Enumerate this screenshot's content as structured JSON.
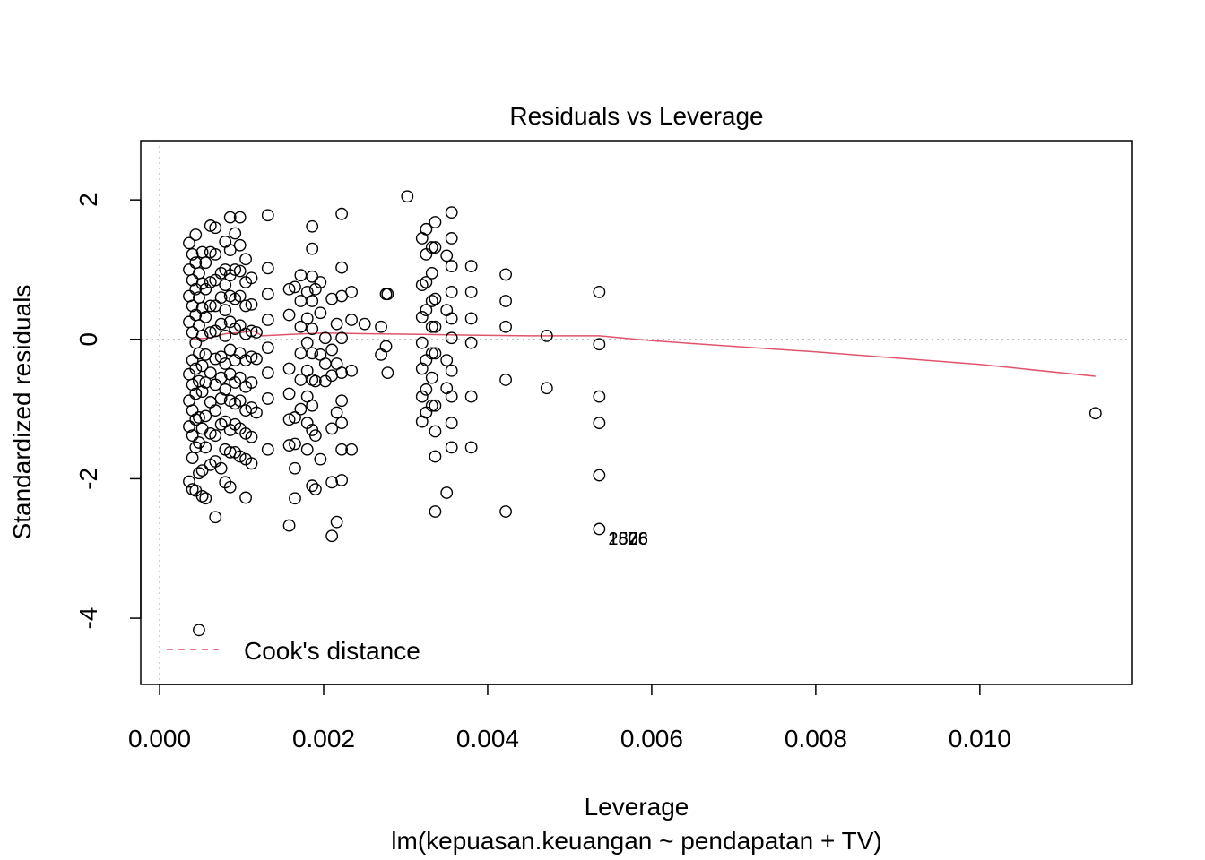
{
  "chart_data": {
    "type": "scatter",
    "title": "Residuals vs Leverage",
    "xlabel": "Leverage",
    "subtitle": "lm(kepuasan.keuangan ~ pendapatan + TV)",
    "ylabel": "Standardized residuals",
    "xlim": [
      -0.00023,
      0.01186
    ],
    "ylim": [
      -4.95,
      2.85
    ],
    "xticks": [
      0.0,
      0.002,
      0.004,
      0.006,
      0.008,
      0.01
    ],
    "xtick_labels": [
      "0.000",
      "0.002",
      "0.004",
      "0.006",
      "0.008",
      "0.010"
    ],
    "yticks": [
      -4,
      -2,
      0,
      2
    ],
    "ytick_labels": [
      "-4",
      "-2",
      "0",
      "2"
    ],
    "reference_lines": {
      "x": 0,
      "y": 0,
      "style": "dotted",
      "color": "#bebebe"
    },
    "point_style": "open-circle",
    "points": [
      [
        0.00036,
        -2.04
      ],
      [
        0.00036,
        -1.25
      ],
      [
        0.00036,
        -0.88
      ],
      [
        0.00036,
        -0.5
      ],
      [
        0.00036,
        0.25
      ],
      [
        0.00036,
        0.62
      ],
      [
        0.00036,
        1.0
      ],
      [
        0.00036,
        1.38
      ],
      [
        0.0004,
        -2.15
      ],
      [
        0.0004,
        -1.7
      ],
      [
        0.0004,
        -1.38
      ],
      [
        0.0004,
        -1.02
      ],
      [
        0.0004,
        -0.65
      ],
      [
        0.0004,
        -0.3
      ],
      [
        0.0004,
        0.1
      ],
      [
        0.0004,
        0.48
      ],
      [
        0.0004,
        0.85
      ],
      [
        0.0004,
        1.22
      ],
      [
        0.00044,
        -2.17
      ],
      [
        0.00044,
        -1.55
      ],
      [
        0.00044,
        -1.15
      ],
      [
        0.00044,
        -0.78
      ],
      [
        0.00044,
        -0.42
      ],
      [
        0.00044,
        -0.05
      ],
      [
        0.00044,
        0.35
      ],
      [
        0.00044,
        0.72
      ],
      [
        0.00044,
        1.1
      ],
      [
        0.00044,
        1.5
      ],
      [
        0.00048,
        -4.17
      ],
      [
        0.00048,
        -1.92
      ],
      [
        0.00048,
        -1.48
      ],
      [
        0.00048,
        -1.12
      ],
      [
        0.00048,
        -0.6
      ],
      [
        0.00048,
        -0.2
      ],
      [
        0.00048,
        0.2
      ],
      [
        0.00048,
        0.6
      ],
      [
        0.00048,
        0.95
      ],
      [
        0.00052,
        -2.25
      ],
      [
        0.00052,
        -1.88
      ],
      [
        0.00052,
        -1.28
      ],
      [
        0.00052,
        -0.75
      ],
      [
        0.00052,
        -0.38
      ],
      [
        0.00052,
        0.05
      ],
      [
        0.00052,
        0.45
      ],
      [
        0.00052,
        0.8
      ],
      [
        0.00052,
        1.25
      ],
      [
        0.00056,
        -2.28
      ],
      [
        0.00056,
        -1.55
      ],
      [
        0.00056,
        -1.1
      ],
      [
        0.00056,
        -0.62
      ],
      [
        0.00056,
        -0.22
      ],
      [
        0.00056,
        0.32
      ],
      [
        0.00056,
        0.72
      ],
      [
        0.00056,
        1.1
      ],
      [
        0.00062,
        -1.8
      ],
      [
        0.00062,
        -1.35
      ],
      [
        0.00062,
        -0.9
      ],
      [
        0.00062,
        -0.48
      ],
      [
        0.00062,
        0.1
      ],
      [
        0.00062,
        0.48
      ],
      [
        0.00062,
        0.82
      ],
      [
        0.00062,
        1.25
      ],
      [
        0.00062,
        1.63
      ],
      [
        0.00068,
        -2.55
      ],
      [
        0.00068,
        -1.75
      ],
      [
        0.00068,
        -1.38
      ],
      [
        0.00068,
        -1.02
      ],
      [
        0.00068,
        -0.65
      ],
      [
        0.00068,
        -0.28
      ],
      [
        0.00068,
        0.12
      ],
      [
        0.00068,
        0.48
      ],
      [
        0.00068,
        0.85
      ],
      [
        0.00068,
        1.22
      ],
      [
        0.00068,
        1.6
      ],
      [
        0.00075,
        -1.85
      ],
      [
        0.00075,
        -1.22
      ],
      [
        0.00075,
        -0.85
      ],
      [
        0.00075,
        -0.55
      ],
      [
        0.00075,
        -0.25
      ],
      [
        0.00075,
        0.22
      ],
      [
        0.00075,
        0.6
      ],
      [
        0.00075,
        0.95
      ],
      [
        0.0008,
        -2.05
      ],
      [
        0.0008,
        -1.58
      ],
      [
        0.0008,
        -1.18
      ],
      [
        0.0008,
        -0.72
      ],
      [
        0.0008,
        -0.35
      ],
      [
        0.0008,
        0.05
      ],
      [
        0.0008,
        0.42
      ],
      [
        0.0008,
        0.78
      ],
      [
        0.0008,
        1.0
      ],
      [
        0.0008,
        1.4
      ],
      [
        0.00086,
        -2.12
      ],
      [
        0.00086,
        -1.62
      ],
      [
        0.00086,
        -1.3
      ],
      [
        0.00086,
        -0.88
      ],
      [
        0.00086,
        -0.5
      ],
      [
        0.00086,
        -0.15
      ],
      [
        0.00086,
        0.25
      ],
      [
        0.00086,
        0.62
      ],
      [
        0.00086,
        0.92
      ],
      [
        0.00086,
        1.28
      ],
      [
        0.00086,
        1.75
      ],
      [
        0.00092,
        -1.62
      ],
      [
        0.00092,
        -1.22
      ],
      [
        0.00092,
        -0.92
      ],
      [
        0.00092,
        -0.62
      ],
      [
        0.00092,
        -0.3
      ],
      [
        0.00092,
        0.15
      ],
      [
        0.00092,
        0.58
      ],
      [
        0.00092,
        1.0
      ],
      [
        0.00092,
        1.52
      ],
      [
        0.00098,
        -1.68
      ],
      [
        0.00098,
        -1.28
      ],
      [
        0.00098,
        -0.88
      ],
      [
        0.00098,
        -0.55
      ],
      [
        0.00098,
        -0.2
      ],
      [
        0.00098,
        0.2
      ],
      [
        0.00098,
        0.62
      ],
      [
        0.00098,
        0.98
      ],
      [
        0.00098,
        1.35
      ],
      [
        0.00098,
        1.75
      ],
      [
        0.00105,
        -2.27
      ],
      [
        0.00105,
        -1.72
      ],
      [
        0.00105,
        -1.35
      ],
      [
        0.00105,
        -1.02
      ],
      [
        0.00105,
        -0.68
      ],
      [
        0.00105,
        -0.3
      ],
      [
        0.00105,
        0.08
      ],
      [
        0.00105,
        0.48
      ],
      [
        0.00105,
        0.82
      ],
      [
        0.00105,
        1.15
      ],
      [
        0.00112,
        -1.78
      ],
      [
        0.00112,
        -1.4
      ],
      [
        0.00112,
        -0.98
      ],
      [
        0.00112,
        -0.62
      ],
      [
        0.00112,
        -0.25
      ],
      [
        0.00112,
        0.12
      ],
      [
        0.00112,
        0.5
      ],
      [
        0.00112,
        0.88
      ],
      [
        0.00118,
        -1.05
      ],
      [
        0.00118,
        -0.28
      ],
      [
        0.00118,
        0.1
      ],
      [
        0.00132,
        -1.58
      ],
      [
        0.00132,
        -0.85
      ],
      [
        0.00132,
        -0.48
      ],
      [
        0.00132,
        -0.12
      ],
      [
        0.00132,
        0.28
      ],
      [
        0.00132,
        0.65
      ],
      [
        0.00132,
        1.02
      ],
      [
        0.00132,
        1.78
      ],
      [
        0.00158,
        -2.67
      ],
      [
        0.00158,
        -1.52
      ],
      [
        0.00158,
        -1.15
      ],
      [
        0.00158,
        -0.78
      ],
      [
        0.00158,
        -0.42
      ],
      [
        0.00158,
        0.35
      ],
      [
        0.00158,
        0.72
      ],
      [
        0.00165,
        -2.28
      ],
      [
        0.00165,
        -1.85
      ],
      [
        0.00165,
        -1.5
      ],
      [
        0.00165,
        -1.12
      ],
      [
        0.00165,
        0.75
      ],
      [
        0.00172,
        -1.0
      ],
      [
        0.00172,
        -0.58
      ],
      [
        0.00172,
        -0.2
      ],
      [
        0.00172,
        0.18
      ],
      [
        0.00172,
        0.55
      ],
      [
        0.00172,
        0.92
      ],
      [
        0.0018,
        -1.58
      ],
      [
        0.0018,
        -1.2
      ],
      [
        0.0018,
        -0.82
      ],
      [
        0.0018,
        -0.45
      ],
      [
        0.0018,
        -0.05
      ],
      [
        0.0018,
        0.3
      ],
      [
        0.0018,
        0.68
      ],
      [
        0.00186,
        -2.1
      ],
      [
        0.00186,
        -1.3
      ],
      [
        0.00186,
        -0.95
      ],
      [
        0.00186,
        -0.58
      ],
      [
        0.00186,
        -0.2
      ],
      [
        0.00186,
        0.15
      ],
      [
        0.00186,
        0.55
      ],
      [
        0.00186,
        0.9
      ],
      [
        0.00186,
        1.3
      ],
      [
        0.00186,
        1.62
      ],
      [
        0.0019,
        -2.15
      ],
      [
        0.0019,
        -1.38
      ],
      [
        0.0019,
        -0.6
      ],
      [
        0.0019,
        0.72
      ],
      [
        0.00196,
        -1.72
      ],
      [
        0.00196,
        -0.22
      ],
      [
        0.00196,
        0.38
      ],
      [
        0.00196,
        0.82
      ],
      [
        0.00202,
        -0.6
      ],
      [
        0.00202,
        -0.35
      ],
      [
        0.00202,
        0.02
      ],
      [
        0.0021,
        -2.82
      ],
      [
        0.0021,
        -2.05
      ],
      [
        0.0021,
        -1.28
      ],
      [
        0.0021,
        -0.52
      ],
      [
        0.0021,
        -0.15
      ],
      [
        0.0021,
        0.58
      ],
      [
        0.00216,
        -2.62
      ],
      [
        0.00216,
        -1.05
      ],
      [
        0.00216,
        -0.35
      ],
      [
        0.00216,
        0.22
      ],
      [
        0.00222,
        -2.02
      ],
      [
        0.00222,
        -1.58
      ],
      [
        0.00222,
        -1.2
      ],
      [
        0.00222,
        -0.88
      ],
      [
        0.00222,
        -0.48
      ],
      [
        0.00222,
        0.02
      ],
      [
        0.00222,
        0.62
      ],
      [
        0.00222,
        1.03
      ],
      [
        0.00222,
        1.8
      ],
      [
        0.00234,
        -1.58
      ],
      [
        0.00234,
        -0.45
      ],
      [
        0.00234,
        0.28
      ],
      [
        0.00234,
        0.68
      ],
      [
        0.0025,
        0.22
      ],
      [
        0.0027,
        -0.22
      ],
      [
        0.0027,
        0.18
      ],
      [
        0.00276,
        -0.1
      ],
      [
        0.00276,
        0.65
      ],
      [
        0.00278,
        -0.48
      ],
      [
        0.00278,
        0.65
      ],
      [
        0.00302,
        2.05
      ],
      [
        0.0032,
        -1.18
      ],
      [
        0.0032,
        -0.82
      ],
      [
        0.0032,
        -0.42
      ],
      [
        0.0032,
        -0.05
      ],
      [
        0.0032,
        0.32
      ],
      [
        0.0032,
        0.78
      ],
      [
        0.0032,
        1.45
      ],
      [
        0.00325,
        -1.05
      ],
      [
        0.00325,
        -0.72
      ],
      [
        0.00325,
        -0.3
      ],
      [
        0.00325,
        0.42
      ],
      [
        0.00325,
        0.82
      ],
      [
        0.00325,
        1.22
      ],
      [
        0.00325,
        1.58
      ],
      [
        0.00332,
        -0.95
      ],
      [
        0.00332,
        -0.55
      ],
      [
        0.00332,
        -0.2
      ],
      [
        0.00332,
        0.18
      ],
      [
        0.00332,
        0.55
      ],
      [
        0.00332,
        0.95
      ],
      [
        0.00332,
        1.32
      ],
      [
        0.00336,
        -2.47
      ],
      [
        0.00336,
        -1.68
      ],
      [
        0.00336,
        -1.32
      ],
      [
        0.00336,
        -0.95
      ],
      [
        0.00336,
        -0.2
      ],
      [
        0.00336,
        0.18
      ],
      [
        0.00336,
        0.58
      ],
      [
        0.00336,
        1.32
      ],
      [
        0.00336,
        1.68
      ],
      [
        0.0035,
        -2.2
      ],
      [
        0.0035,
        -0.7
      ],
      [
        0.0035,
        -0.3
      ],
      [
        0.0035,
        0.42
      ],
      [
        0.0035,
        1.2
      ],
      [
        0.00356,
        -1.55
      ],
      [
        0.00356,
        -1.2
      ],
      [
        0.00356,
        -0.82
      ],
      [
        0.00356,
        -0.45
      ],
      [
        0.00356,
        0.02
      ],
      [
        0.00356,
        0.3
      ],
      [
        0.00356,
        0.68
      ],
      [
        0.00356,
        1.05
      ],
      [
        0.00356,
        1.45
      ],
      [
        0.00356,
        1.82
      ],
      [
        0.0038,
        -1.55
      ],
      [
        0.0038,
        -0.82
      ],
      [
        0.0038,
        -0.05
      ],
      [
        0.0038,
        0.3
      ],
      [
        0.0038,
        0.68
      ],
      [
        0.0038,
        1.05
      ],
      [
        0.00422,
        -2.47
      ],
      [
        0.00422,
        -0.58
      ],
      [
        0.00422,
        0.18
      ],
      [
        0.00422,
        0.55
      ],
      [
        0.00422,
        0.93
      ],
      [
        0.00472,
        -0.7
      ],
      [
        0.00472,
        0.05
      ],
      [
        0.00536,
        -2.72
      ],
      [
        0.00536,
        -1.95
      ],
      [
        0.00536,
        -1.2
      ],
      [
        0.00536,
        -0.82
      ],
      [
        0.00536,
        -0.07
      ],
      [
        0.00536,
        0.68
      ],
      [
        0.01141,
        -1.06
      ]
    ],
    "smooth_line": {
      "color": "#DF536B",
      "points": [
        [
          0.0004,
          0.0
        ],
        [
          0.0006,
          0.02
        ],
        [
          0.0008,
          0.08
        ],
        [
          0.001,
          0.1
        ],
        [
          0.00115,
          0.12
        ],
        [
          0.00125,
          0.05
        ],
        [
          0.0016,
          0.07
        ],
        [
          0.002,
          0.09
        ],
        [
          0.0026,
          0.08
        ],
        [
          0.0032,
          0.07
        ],
        [
          0.0038,
          0.06
        ],
        [
          0.0045,
          0.05
        ],
        [
          0.00536,
          0.05
        ],
        [
          0.006,
          -0.02
        ],
        [
          0.008,
          -0.18
        ],
        [
          0.01,
          -0.36
        ],
        [
          0.01141,
          -0.53
        ]
      ]
    },
    "point_labels": [
      {
        "x": 0.00536,
        "y": -2.84,
        "text": "2576"
      },
      {
        "x": 0.00536,
        "y": -2.84,
        "text": "1828"
      },
      {
        "x": 0.00536,
        "y": -2.84,
        "text": "1506"
      }
    ],
    "legend": {
      "position": "bottom-left",
      "entries": [
        {
          "label": "Cook's distance",
          "style": "dashed",
          "color": "#DF536B"
        }
      ]
    }
  }
}
